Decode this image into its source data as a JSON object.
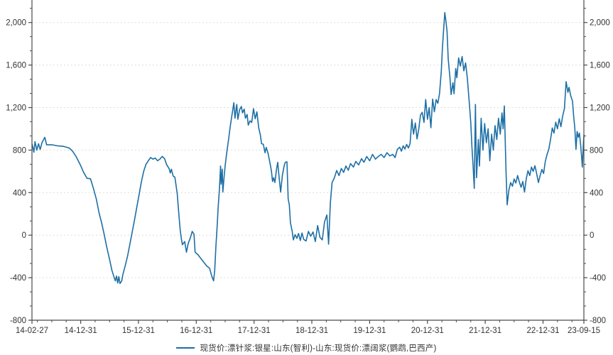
{
  "colors": {
    "line": "#1d6fa5",
    "grid": "#e0ddd6",
    "axis": "#4a4a4a",
    "tick_text": "#333333",
    "background": "#ffffff"
  },
  "chart_data": {
    "type": "line",
    "title": "",
    "legend_label": "现货价:漂针浆:银星:山东(智利)-山东:现货价:漂阔浆(鹦鹉,巴西产)",
    "legend_position": "bottom-center",
    "grid": "horizontal-dashed-major",
    "axes": {
      "left": true,
      "right": true,
      "bottom": true,
      "right_labels_mirror_left": true
    },
    "xlim": [
      2014.157,
      2023.707
    ],
    "ylim": [
      -800,
      2133.33
    ],
    "y_major_ticks": [
      -800,
      -400,
      0,
      400,
      800,
      1200,
      1600,
      2000
    ],
    "y_tick_labels": [
      "-800",
      "-400",
      "0",
      "400",
      "800",
      "1,200",
      "1,600",
      "2,000"
    ],
    "y_minor_step": 133.333,
    "x_tick_labels": [
      "14-02-27",
      "14-12-31",
      "15-12-31",
      "16-12-31",
      "17-12-31",
      "18-12-31",
      "19-12-31",
      "20-12-31",
      "21-12-31",
      "22-12-31",
      "23-09-15"
    ],
    "x_tick_positions": [
      2014.157,
      2015.0,
      2016.0,
      2017.0,
      2018.0,
      2019.0,
      2020.0,
      2021.0,
      2022.0,
      2023.0,
      2023.707
    ],
    "x_minor_step": 0.25,
    "series": [
      {
        "name": "现货价:漂针浆:银星:山东(智利)-山东:现货价:漂阔浆(鹦鹉,巴西产)",
        "color": "#1d6fa5",
        "points": [
          [
            2014.16,
            855
          ],
          [
            2014.19,
            780
          ],
          [
            2014.21,
            880
          ],
          [
            2014.24,
            800
          ],
          [
            2014.27,
            860
          ],
          [
            2014.3,
            805
          ],
          [
            2014.33,
            870
          ],
          [
            2014.38,
            920
          ],
          [
            2014.41,
            850
          ],
          [
            2014.5,
            850
          ],
          [
            2014.6,
            840
          ],
          [
            2014.7,
            835
          ],
          [
            2014.8,
            820
          ],
          [
            2014.86,
            790
          ],
          [
            2014.92,
            740
          ],
          [
            2014.99,
            665
          ],
          [
            2015.05,
            590
          ],
          [
            2015.11,
            535
          ],
          [
            2015.17,
            530
          ],
          [
            2015.22,
            440
          ],
          [
            2015.27,
            340
          ],
          [
            2015.32,
            205
          ],
          [
            2015.36,
            120
          ],
          [
            2015.41,
            0
          ],
          [
            2015.45,
            -110
          ],
          [
            2015.5,
            -230
          ],
          [
            2015.54,
            -330
          ],
          [
            2015.58,
            -400
          ],
          [
            2015.6,
            -430
          ],
          [
            2015.62,
            -385
          ],
          [
            2015.64,
            -450
          ],
          [
            2015.66,
            -390
          ],
          [
            2015.68,
            -455
          ],
          [
            2015.71,
            -430
          ],
          [
            2015.73,
            -370
          ],
          [
            2015.77,
            -290
          ],
          [
            2015.81,
            -200
          ],
          [
            2015.85,
            -90
          ],
          [
            2015.89,
            25
          ],
          [
            2015.93,
            140
          ],
          [
            2015.97,
            260
          ],
          [
            2016.01,
            380
          ],
          [
            2016.05,
            500
          ],
          [
            2016.09,
            600
          ],
          [
            2016.13,
            665
          ],
          [
            2016.17,
            700
          ],
          [
            2016.21,
            730
          ],
          [
            2016.25,
            715
          ],
          [
            2016.29,
            725
          ],
          [
            2016.33,
            700
          ],
          [
            2016.37,
            715
          ],
          [
            2016.41,
            740
          ],
          [
            2016.45,
            720
          ],
          [
            2016.49,
            660
          ],
          [
            2016.53,
            625
          ],
          [
            2016.55,
            585
          ],
          [
            2016.57,
            620
          ],
          [
            2016.6,
            555
          ],
          [
            2016.63,
            545
          ],
          [
            2016.65,
            470
          ],
          [
            2016.67,
            390
          ],
          [
            2016.69,
            255
          ],
          [
            2016.72,
            60
          ],
          [
            2016.74,
            -30
          ],
          [
            2016.76,
            -90
          ],
          [
            2016.8,
            -60
          ],
          [
            2016.83,
            -160
          ],
          [
            2016.86,
            -80
          ],
          [
            2016.9,
            -20
          ],
          [
            2016.93,
            35
          ],
          [
            2016.96,
            10
          ],
          [
            2016.98,
            -160
          ],
          [
            2017.03,
            -185
          ],
          [
            2017.08,
            -220
          ],
          [
            2017.13,
            -255
          ],
          [
            2017.18,
            -290
          ],
          [
            2017.23,
            -310
          ],
          [
            2017.27,
            -390
          ],
          [
            2017.3,
            -430
          ],
          [
            2017.32,
            -330
          ],
          [
            2017.34,
            -100
          ],
          [
            2017.36,
            70
          ],
          [
            2017.38,
            270
          ],
          [
            2017.4,
            430
          ],
          [
            2017.42,
            650
          ],
          [
            2017.43,
            480
          ],
          [
            2017.45,
            620
          ],
          [
            2017.46,
            405
          ],
          [
            2017.48,
            540
          ],
          [
            2017.5,
            655
          ],
          [
            2017.53,
            785
          ],
          [
            2017.56,
            905
          ],
          [
            2017.59,
            1030
          ],
          [
            2017.62,
            1140
          ],
          [
            2017.65,
            1245
          ],
          [
            2017.67,
            1100
          ],
          [
            2017.7,
            1230
          ],
          [
            2017.72,
            1090
          ],
          [
            2017.75,
            1180
          ],
          [
            2017.78,
            1210
          ],
          [
            2017.8,
            1150
          ],
          [
            2017.83,
            1185
          ],
          [
            2017.85,
            1100
          ],
          [
            2017.88,
            1135
          ],
          [
            2017.9,
            1035
          ],
          [
            2017.93,
            1075
          ],
          [
            2017.96,
            1060
          ],
          [
            2017.99,
            1190
          ],
          [
            2018.02,
            1095
          ],
          [
            2018.05,
            1160
          ],
          [
            2018.08,
            1010
          ],
          [
            2018.11,
            940
          ],
          [
            2018.13,
            860
          ],
          [
            2018.16,
            855
          ],
          [
            2018.19,
            775
          ],
          [
            2018.21,
            825
          ],
          [
            2018.24,
            775
          ],
          [
            2018.27,
            695
          ],
          [
            2018.3,
            605
          ],
          [
            2018.32,
            505
          ],
          [
            2018.34,
            540
          ],
          [
            2018.36,
            495
          ],
          [
            2018.39,
            625
          ],
          [
            2018.41,
            685
          ],
          [
            2018.43,
            560
          ],
          [
            2018.46,
            405
          ],
          [
            2018.49,
            560
          ],
          [
            2018.52,
            650
          ],
          [
            2018.54,
            685
          ],
          [
            2018.57,
            690
          ],
          [
            2018.59,
            340
          ],
          [
            2018.61,
            285
          ],
          [
            2018.63,
            115
          ],
          [
            2018.66,
            35
          ],
          [
            2018.68,
            -45
          ],
          [
            2018.71,
            5
          ],
          [
            2018.74,
            -30
          ],
          [
            2018.77,
            15
          ],
          [
            2018.8,
            -50
          ],
          [
            2018.83,
            20
          ],
          [
            2018.86,
            -40
          ],
          [
            2018.9,
            -55
          ],
          [
            2018.94,
            35
          ],
          [
            2018.98,
            -10
          ],
          [
            2019.02,
            30
          ],
          [
            2019.06,
            -60
          ],
          [
            2019.1,
            90
          ],
          [
            2019.14,
            -20
          ],
          [
            2019.18,
            -45
          ],
          [
            2019.22,
            125
          ],
          [
            2019.26,
            190
          ],
          [
            2019.29,
            -85
          ],
          [
            2019.32,
            305
          ],
          [
            2019.35,
            495
          ],
          [
            2019.39,
            540
          ],
          [
            2019.43,
            608
          ],
          [
            2019.47,
            560
          ],
          [
            2019.51,
            627
          ],
          [
            2019.55,
            590
          ],
          [
            2019.59,
            650
          ],
          [
            2019.63,
            610
          ],
          [
            2019.67,
            673
          ],
          [
            2019.72,
            640
          ],
          [
            2019.76,
            694
          ],
          [
            2019.81,
            660
          ],
          [
            2019.86,
            720
          ],
          [
            2019.9,
            685
          ],
          [
            2019.95,
            740
          ],
          [
            2020.0,
            700
          ],
          [
            2020.05,
            760
          ],
          [
            2020.1,
            715
          ],
          [
            2020.15,
            740
          ],
          [
            2020.2,
            760
          ],
          [
            2020.25,
            730
          ],
          [
            2020.3,
            775
          ],
          [
            2020.35,
            745
          ],
          [
            2020.4,
            760
          ],
          [
            2020.44,
            730
          ],
          [
            2020.48,
            807
          ],
          [
            2020.52,
            827
          ],
          [
            2020.55,
            790
          ],
          [
            2020.58,
            840
          ],
          [
            2020.61,
            810
          ],
          [
            2020.64,
            853
          ],
          [
            2020.67,
            820
          ],
          [
            2020.7,
            860
          ],
          [
            2020.73,
            1090
          ],
          [
            2020.76,
            950
          ],
          [
            2020.79,
            1055
          ],
          [
            2020.82,
            905
          ],
          [
            2020.85,
            1000
          ],
          [
            2020.88,
            1130
          ],
          [
            2020.91,
            1155
          ],
          [
            2020.94,
            1060
          ],
          [
            2020.97,
            1275
          ],
          [
            2021.0,
            1090
          ],
          [
            2021.03,
            1200
          ],
          [
            2021.06,
            1010
          ],
          [
            2021.09,
            1280
          ],
          [
            2021.12,
            1160
          ],
          [
            2021.15,
            1275
          ],
          [
            2021.18,
            1240
          ],
          [
            2021.21,
            1333
          ],
          [
            2021.24,
            1545
          ],
          [
            2021.26,
            1767
          ],
          [
            2021.28,
            1927
          ],
          [
            2021.3,
            2093
          ],
          [
            2021.32,
            2013
          ],
          [
            2021.34,
            1913
          ],
          [
            2021.36,
            1658
          ],
          [
            2021.39,
            1477
          ],
          [
            2021.41,
            1323
          ],
          [
            2021.44,
            1433
          ],
          [
            2021.46,
            1330
          ],
          [
            2021.49,
            1567
          ],
          [
            2021.51,
            1480
          ],
          [
            2021.54,
            1667
          ],
          [
            2021.57,
            1590
          ],
          [
            2021.6,
            1680
          ],
          [
            2021.63,
            1545
          ],
          [
            2021.66,
            1620
          ],
          [
            2021.69,
            1477
          ],
          [
            2021.72,
            1277
          ],
          [
            2021.75,
            1055
          ],
          [
            2021.77,
            830
          ],
          [
            2021.79,
            653
          ],
          [
            2021.81,
            440
          ],
          [
            2021.83,
            1230
          ],
          [
            2021.85,
            540
          ],
          [
            2021.88,
            900
          ],
          [
            2021.9,
            650
          ],
          [
            2021.93,
            1100
          ],
          [
            2021.96,
            800
          ],
          [
            2021.99,
            1050
          ],
          [
            2022.02,
            870
          ],
          [
            2022.05,
            1000
          ],
          [
            2022.08,
            700
          ],
          [
            2022.11,
            950
          ],
          [
            2022.14,
            800
          ],
          [
            2022.17,
            1030
          ],
          [
            2022.2,
            900
          ],
          [
            2022.23,
            1100
          ],
          [
            2022.26,
            950
          ],
          [
            2022.29,
            1150
          ],
          [
            2022.31,
            1000
          ],
          [
            2022.33,
            1215
          ],
          [
            2022.36,
            600
          ],
          [
            2022.38,
            285
          ],
          [
            2022.41,
            427
          ],
          [
            2022.44,
            495
          ],
          [
            2022.47,
            460
          ],
          [
            2022.5,
            528
          ],
          [
            2022.53,
            490
          ],
          [
            2022.56,
            561
          ],
          [
            2022.59,
            500
          ],
          [
            2022.62,
            450
          ],
          [
            2022.65,
            505
          ],
          [
            2022.68,
            405
          ],
          [
            2022.71,
            530
          ],
          [
            2022.74,
            606
          ],
          [
            2022.77,
            560
          ],
          [
            2022.8,
            640
          ],
          [
            2022.83,
            600
          ],
          [
            2022.86,
            653
          ],
          [
            2022.89,
            580
          ],
          [
            2022.92,
            495
          ],
          [
            2022.95,
            560
          ],
          [
            2022.98,
            618
          ],
          [
            2023.01,
            580
          ],
          [
            2023.04,
            694
          ],
          [
            2023.07,
            760
          ],
          [
            2023.1,
            807
          ],
          [
            2023.13,
            900
          ],
          [
            2023.16,
            1008
          ],
          [
            2023.19,
            960
          ],
          [
            2023.22,
            1062
          ],
          [
            2023.25,
            1000
          ],
          [
            2023.28,
            1095
          ],
          [
            2023.31,
            1020
          ],
          [
            2023.34,
            1120
          ],
          [
            2023.37,
            1189
          ],
          [
            2023.4,
            1444
          ],
          [
            2023.43,
            1343
          ],
          [
            2023.45,
            1390
          ],
          [
            2023.48,
            1310
          ],
          [
            2023.51,
            1260
          ],
          [
            2023.53,
            1120
          ],
          [
            2023.55,
            1010
          ],
          [
            2023.57,
            807
          ],
          [
            2023.59,
            975
          ],
          [
            2023.61,
            920
          ],
          [
            2023.63,
            960
          ],
          [
            2023.65,
            853
          ],
          [
            2023.67,
            720
          ],
          [
            2023.68,
            640
          ],
          [
            2023.7,
            875
          ],
          [
            2023.71,
            941
          ]
        ]
      }
    ]
  }
}
